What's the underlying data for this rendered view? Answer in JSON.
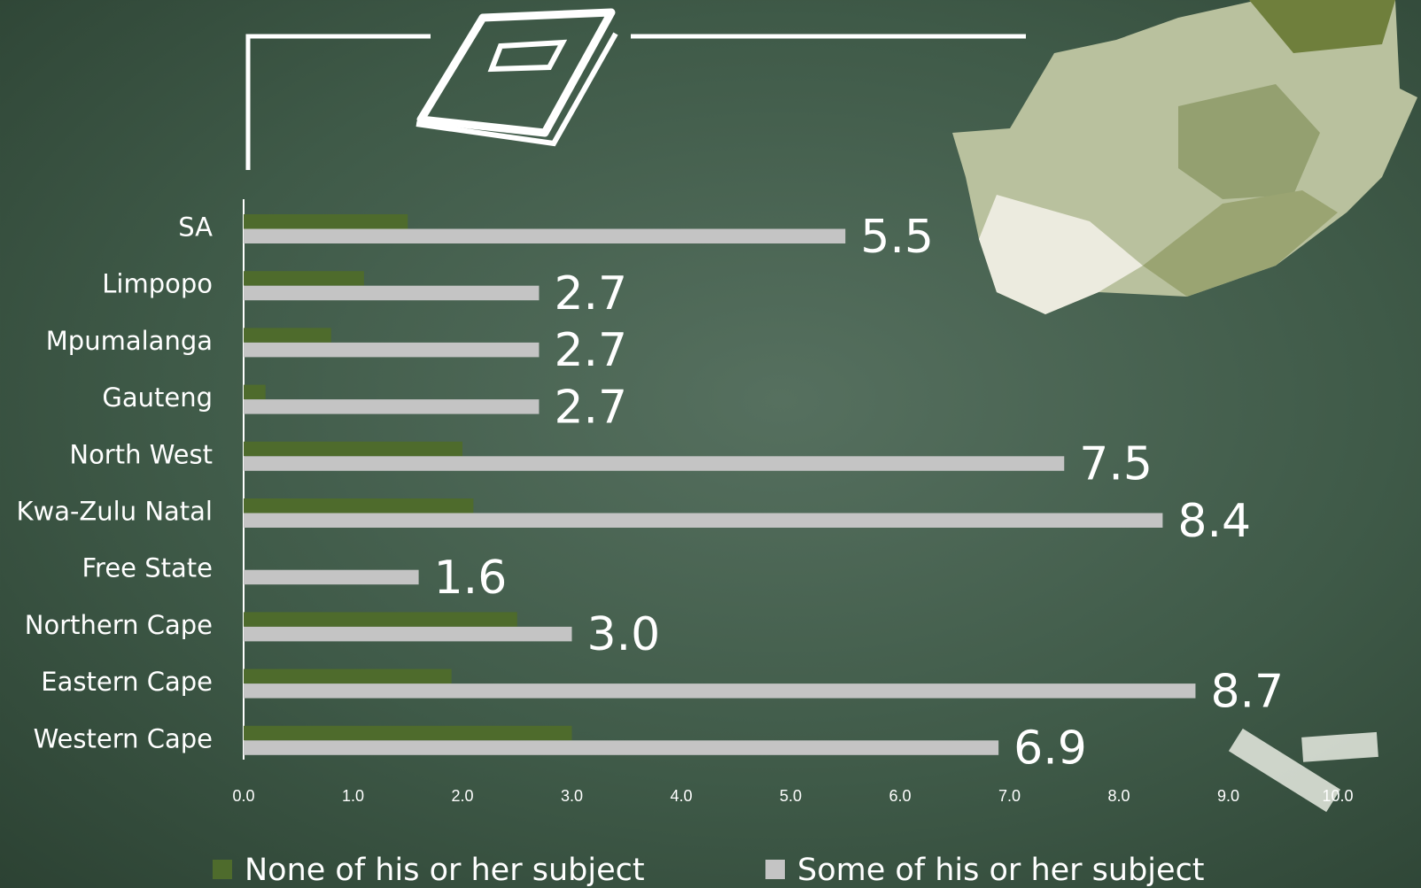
{
  "chart_data": {
    "type": "hbar",
    "categories": [
      "SA",
      "Limpopo",
      "Mpumalanga",
      "Gauteng",
      "North West",
      "Kwa-Zulu Natal",
      "Free State",
      "Northern Cape",
      "Eastern Cape",
      "Western Cape"
    ],
    "series": [
      {
        "name": "None of his or her subject",
        "color": "#4e6b2c",
        "values": [
          1.5,
          1.1,
          0.8,
          0.2,
          2.0,
          2.1,
          0,
          2.5,
          1.9,
          3.0
        ]
      },
      {
        "name": "Some of his or her subject",
        "color": "#c4c4c4",
        "values": [
          5.5,
          2.7,
          2.7,
          2.7,
          7.5,
          8.4,
          1.6,
          3.0,
          8.7,
          6.9
        ],
        "value_labels": [
          "5.5",
          "2.7",
          "2.7",
          "2.7",
          "7.5",
          "8.4",
          "1.6",
          "3.0",
          "8.7",
          "6.9"
        ]
      }
    ],
    "xlim": [
      0,
      10
    ],
    "xticks": [
      {
        "value": 0,
        "label": "0.0"
      },
      {
        "value": 1,
        "label": "1.0"
      },
      {
        "value": 2,
        "label": "2.0"
      },
      {
        "value": 3,
        "label": "3.0"
      },
      {
        "value": 4,
        "label": "4.0"
      },
      {
        "value": 5,
        "label": "5.0"
      },
      {
        "value": 6,
        "label": "6.0"
      },
      {
        "value": 7,
        "label": "7.0"
      },
      {
        "value": 8,
        "label": "8.0"
      },
      {
        "value": 9,
        "label": "9.0"
      },
      {
        "value": 10,
        "label": "10.0"
      }
    ],
    "legend": "bottom"
  }
}
